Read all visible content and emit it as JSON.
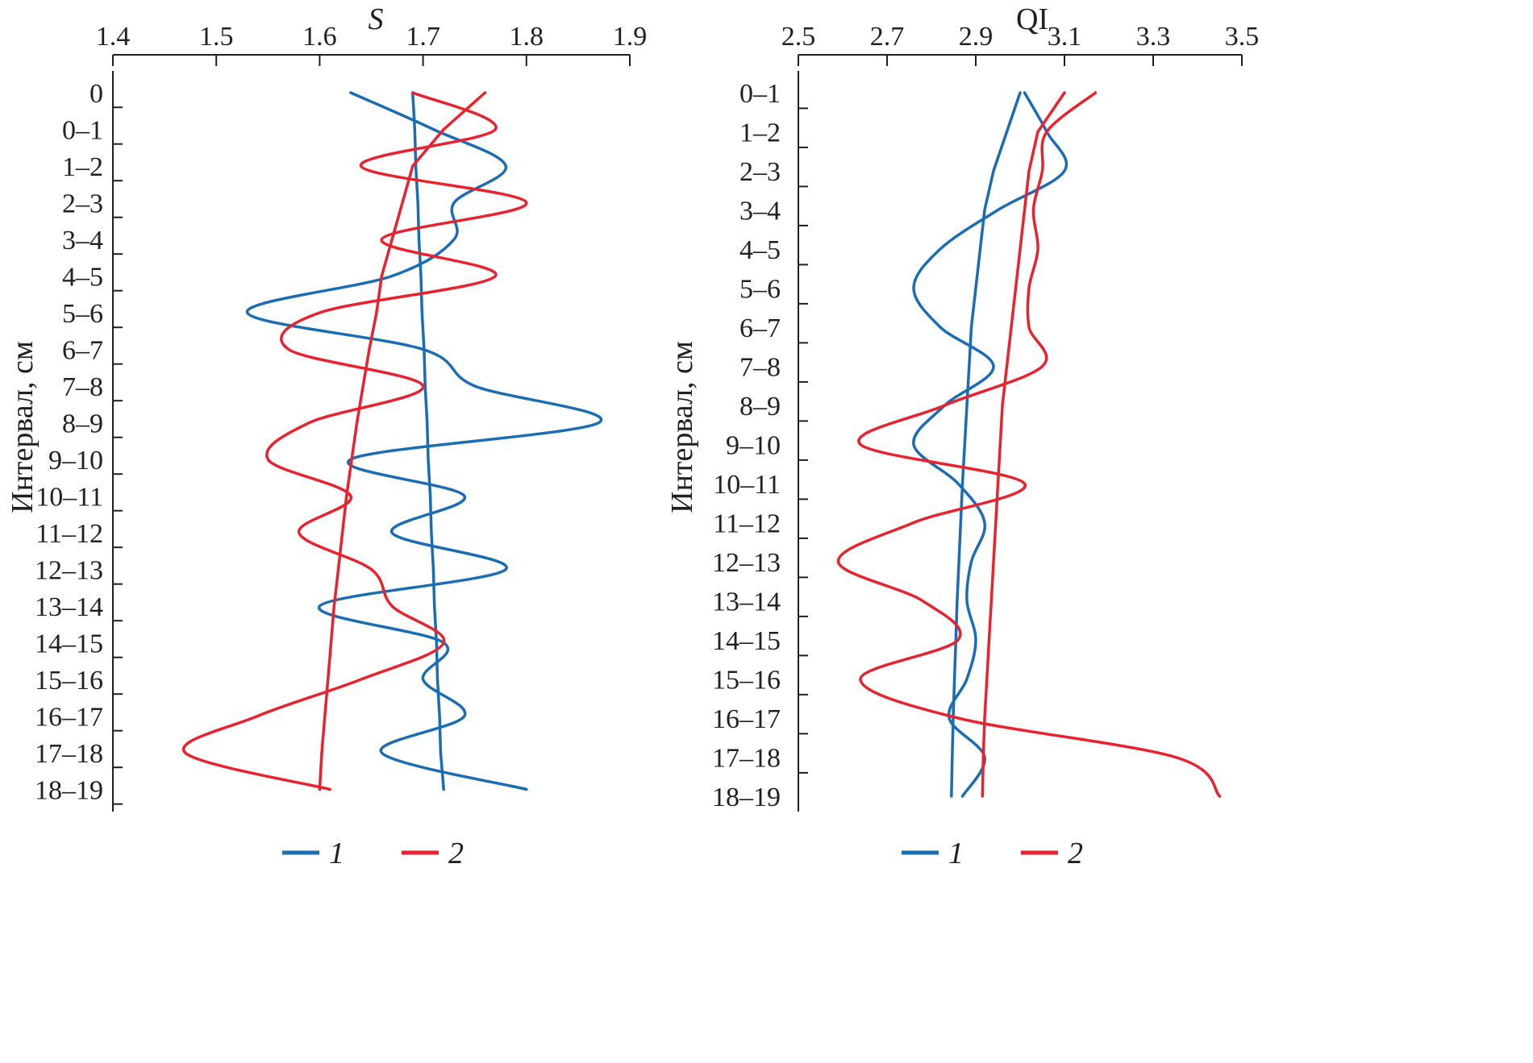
{
  "colors": {
    "series1": "#1b6db3",
    "series2": "#e8222e",
    "axis": "#231f20"
  },
  "ylabel": "Интервал, см",
  "categories": [
    "0",
    "0–1",
    "1–2",
    "2–3",
    "3–4",
    "4–5",
    "5–6",
    "6–7",
    "7–8",
    "8–9",
    "9–10",
    "10–11",
    "11–12",
    "12–13",
    "13–14",
    "14–15",
    "15–16",
    "16–17",
    "17–18",
    "18–19"
  ],
  "legend": [
    {
      "label": "1",
      "color": "#1b6db3"
    },
    {
      "label": "2",
      "color": "#e8222e"
    }
  ],
  "chart_data": [
    {
      "type": "line",
      "title": "S",
      "title_style": "italic",
      "xlabel": "S",
      "ylabel": "Интервал, см",
      "x_ticks": [
        "1.4",
        "1.5",
        "1.6",
        "1.7",
        "1.8",
        "1.9"
      ],
      "xlim": [
        1.4,
        1.9
      ],
      "y_axis": "categorical, top to bottom",
      "categories": [
        "0",
        "0–1",
        "1–2",
        "2–3",
        "3–4",
        "4–5",
        "5–6",
        "6–7",
        "7–8",
        "8–9",
        "9–10",
        "10–11",
        "11–12",
        "12–13",
        "13–14",
        "14–15",
        "15–16",
        "16–17",
        "17–18",
        "18–19"
      ],
      "series": [
        {
          "name": "1",
          "color": "#1b6db3",
          "kind": "data",
          "x": [
            1.63,
            1.71,
            1.78,
            1.73,
            1.73,
            1.67,
            1.53,
            1.7,
            1.75,
            1.87,
            1.63,
            1.74,
            1.67,
            1.78,
            1.6,
            1.72,
            1.7,
            1.74,
            1.66,
            1.8
          ]
        },
        {
          "name": "1",
          "color": "#1b6db3",
          "kind": "trend",
          "x": [
            1.69,
            1.692,
            1.693,
            1.695,
            1.696,
            1.698,
            1.699,
            1.701,
            1.702,
            1.704,
            1.705,
            1.707,
            1.708,
            1.71,
            1.711,
            1.713,
            1.714,
            1.716,
            1.717,
            1.72
          ]
        },
        {
          "name": "2",
          "color": "#e8222e",
          "kind": "data",
          "x": [
            1.69,
            1.77,
            1.64,
            1.8,
            1.66,
            1.77,
            1.6,
            1.57,
            1.7,
            1.59,
            1.55,
            1.63,
            1.58,
            1.65,
            1.67,
            1.72,
            1.64,
            1.54,
            1.47,
            1.61
          ]
        },
        {
          "name": "2",
          "color": "#e8222e",
          "kind": "trend",
          "x": [
            1.76,
            1.72,
            1.69,
            1.68,
            1.67,
            1.66,
            1.655,
            1.648,
            1.642,
            1.636,
            1.631,
            1.626,
            1.622,
            1.618,
            1.614,
            1.611,
            1.608,
            1.605,
            1.602,
            1.6
          ]
        }
      ]
    },
    {
      "type": "line",
      "title": "QI",
      "title_style": "normal",
      "xlabel": "QI",
      "ylabel": "Интервал, см",
      "x_ticks": [
        "2.5",
        "2.7",
        "2.9",
        "3.1",
        "3.3",
        "3.5"
      ],
      "xlim": [
        2.5,
        3.5
      ],
      "y_axis": "categorical, top to bottom",
      "categories": [
        "0–1",
        "1–2",
        "2–3",
        "3–4",
        "4–5",
        "5–6",
        "6–7",
        "7–8",
        "8–9",
        "9–10",
        "10–11",
        "11–12",
        "12–13",
        "13–14",
        "14–15",
        "15–16",
        "16–17",
        "17–18",
        "18–19"
      ],
      "series": [
        {
          "name": "1",
          "color": "#1b6db3",
          "kind": "data",
          "x": [
            3.01,
            3.06,
            3.1,
            2.95,
            2.82,
            2.76,
            2.82,
            2.94,
            2.83,
            2.76,
            2.86,
            2.92,
            2.89,
            2.88,
            2.9,
            2.88,
            2.84,
            2.92,
            2.87
          ]
        },
        {
          "name": "1",
          "color": "#1b6db3",
          "kind": "trend",
          "x": [
            3.0,
            2.97,
            2.94,
            2.92,
            2.91,
            2.9,
            2.89,
            2.885,
            2.88,
            2.875,
            2.87,
            2.866,
            2.862,
            2.858,
            2.855,
            2.852,
            2.849,
            2.847,
            2.845
          ]
        },
        {
          "name": "2",
          "color": "#e8222e",
          "kind": "data",
          "x": [
            3.17,
            3.06,
            3.05,
            3.03,
            3.04,
            3.02,
            3.02,
            3.05,
            2.83,
            2.64,
            3.01,
            2.76,
            2.59,
            2.78,
            2.86,
            2.64,
            2.86,
            3.35,
            3.45
          ]
        },
        {
          "name": "2",
          "color": "#e8222e",
          "kind": "trend",
          "x": [
            3.1,
            3.04,
            3.02,
            3.01,
            3.0,
            2.99,
            2.98,
            2.97,
            2.96,
            2.955,
            2.95,
            2.945,
            2.94,
            2.935,
            2.93,
            2.925,
            2.92,
            2.917,
            2.915
          ]
        }
      ]
    }
  ]
}
